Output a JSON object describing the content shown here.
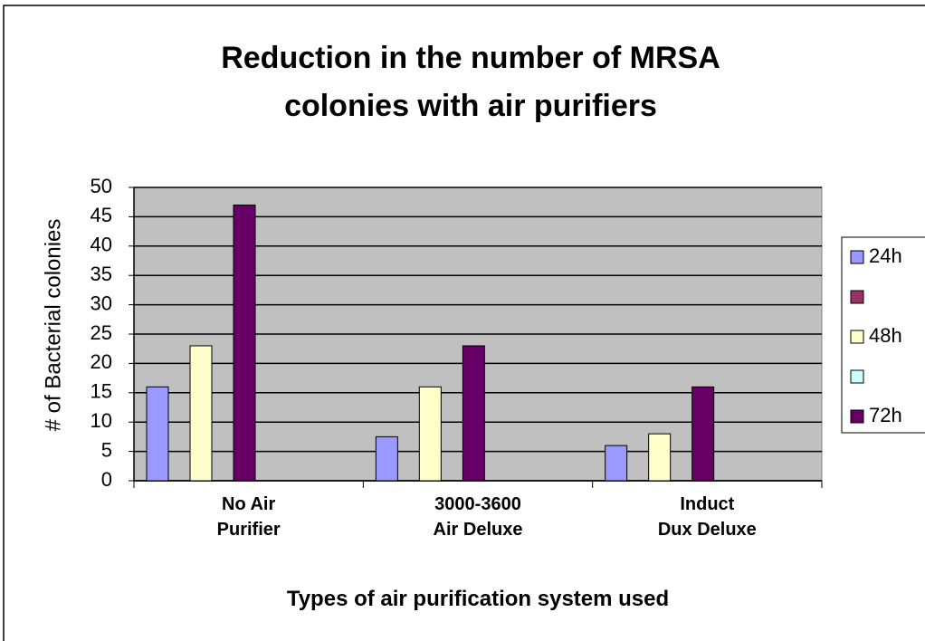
{
  "chart_data": {
    "type": "bar",
    "title": "Reduction in the number of MRSA\ncolonies with air purifiers",
    "x_label": "Types of air purification system used",
    "y_label": "# of Bacterial colonies",
    "categories": [
      "No Air\nPurifier",
      "3000-3600\nAir Deluxe",
      "Induct\nDux Deluxe"
    ],
    "series": [
      {
        "name": "24h",
        "color": "#9999ff",
        "values": [
          16,
          7.5,
          6
        ]
      },
      {
        "name": null,
        "color": "#993366",
        "values": [
          null,
          null,
          null
        ]
      },
      {
        "name": "48h",
        "color": "#ffffcc",
        "values": [
          23,
          16,
          8
        ]
      },
      {
        "name": null,
        "color": "#ccffff",
        "values": [
          null,
          null,
          null
        ]
      },
      {
        "name": "72h",
        "color": "#660066",
        "values": [
          47,
          23,
          16
        ]
      }
    ],
    "ylim": [
      0,
      50
    ],
    "yticks": [
      0,
      5,
      10,
      15,
      20,
      25,
      30,
      35,
      40,
      45,
      50
    ],
    "grid": true,
    "plot_background": "#c0c0c0",
    "legend": "right"
  }
}
